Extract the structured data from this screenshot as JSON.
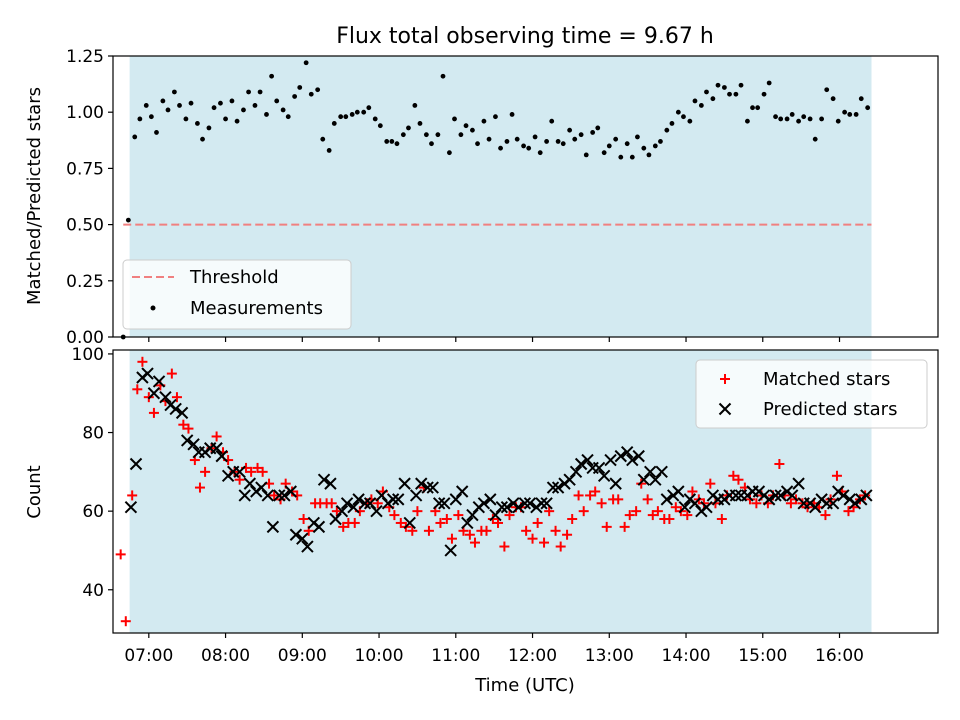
{
  "title": "Flux total observing time = 9.67 h",
  "colors": {
    "background": "#ffffff",
    "shade": "#d3eaf1",
    "threshold": "#f08080",
    "measurement": "#000000",
    "matched": "#ff0000",
    "predicted": "#000000"
  },
  "chart_data": [
    {
      "type": "scatter",
      "panel": "top",
      "xlabel": "",
      "ylabel": "Matched/Predicted stars",
      "xlim": [
        "06:32",
        "17:17"
      ],
      "ylim": [
        0.0,
        1.25
      ],
      "yticks": [
        0.0,
        0.25,
        0.5,
        0.75,
        1.0,
        1.25
      ],
      "ytick_labels": [
        "0.00",
        "0.25",
        "0.50",
        "0.75",
        "1.00",
        "1.25"
      ],
      "shaded_span": [
        "06:45",
        "16:25"
      ],
      "threshold": {
        "name": "Threshold",
        "y": 0.5,
        "x": [
          "06:40",
          "16:25"
        ]
      },
      "legend": {
        "position": "lower-left",
        "entries": [
          "Threshold",
          "Measurements"
        ]
      },
      "series": [
        {
          "name": "Measurements",
          "x": [
            "06:40",
            "06:44",
            "06:49",
            "06:53",
            "06:58",
            "07:02",
            "07:06",
            "07:11",
            "07:15",
            "07:20",
            "07:24",
            "07:29",
            "07:33",
            "07:38",
            "07:42",
            "07:47",
            "07:51",
            "07:56",
            "08:00",
            "08:05",
            "08:09",
            "08:14",
            "08:18",
            "08:23",
            "08:27",
            "08:32",
            "08:36",
            "08:40",
            "08:45",
            "08:49",
            "08:54",
            "08:58",
            "09:03",
            "09:07",
            "09:12",
            "09:16",
            "09:21",
            "09:25",
            "09:30",
            "09:34",
            "09:39",
            "09:43",
            "09:48",
            "09:52",
            "09:57",
            "10:01",
            "10:06",
            "10:10",
            "10:14",
            "10:19",
            "10:23",
            "10:28",
            "10:32",
            "10:37",
            "10:41",
            "10:46",
            "10:50",
            "10:55",
            "10:59",
            "11:04",
            "11:08",
            "11:13",
            "11:17",
            "11:22",
            "11:26",
            "11:31",
            "11:35",
            "11:40",
            "11:44",
            "11:48",
            "11:53",
            "11:57",
            "12:02",
            "12:06",
            "12:11",
            "12:15",
            "12:20",
            "12:24",
            "12:29",
            "12:33",
            "12:38",
            "12:42",
            "12:47",
            "12:51",
            "12:56",
            "13:00",
            "13:05",
            "13:09",
            "13:14",
            "13:18",
            "13:22",
            "13:27",
            "13:31",
            "13:36",
            "13:40",
            "13:45",
            "13:49",
            "13:54",
            "13:58",
            "14:03",
            "14:07",
            "14:12",
            "14:16",
            "14:21",
            "14:25",
            "14:30",
            "14:34",
            "14:39",
            "14:43",
            "14:48",
            "14:52",
            "14:56",
            "15:01",
            "15:05",
            "15:10",
            "15:14",
            "15:19",
            "15:23",
            "15:28",
            "15:32",
            "15:37",
            "15:41",
            "15:46",
            "15:50",
            "15:55",
            "15:59",
            "16:04",
            "16:08",
            "16:13",
            "16:17",
            "16:22"
          ],
          "y": [
            0.0,
            0.52,
            0.89,
            0.97,
            1.03,
            0.98,
            0.91,
            1.05,
            1.01,
            1.09,
            1.03,
            0.97,
            1.04,
            0.95,
            0.88,
            0.93,
            1.02,
            1.04,
            0.97,
            1.05,
            0.96,
            1.01,
            1.09,
            1.03,
            1.09,
            0.99,
            1.16,
            1.05,
            1.01,
            0.98,
            1.07,
            1.11,
            1.22,
            1.08,
            1.1,
            0.88,
            0.83,
            0.95,
            0.98,
            0.98,
            0.99,
            1.0,
            1.0,
            1.02,
            0.97,
            0.94,
            0.87,
            0.87,
            0.86,
            0.9,
            0.93,
            1.03,
            0.95,
            0.9,
            0.86,
            0.9,
            1.16,
            0.82,
            0.97,
            0.9,
            0.94,
            0.92,
            0.86,
            0.96,
            0.88,
            0.98,
            0.84,
            0.87,
            0.99,
            0.88,
            0.85,
            0.84,
            0.89,
            0.82,
            0.87,
            0.96,
            0.87,
            0.86,
            0.92,
            0.88,
            0.9,
            0.81,
            0.91,
            0.93,
            0.82,
            0.85,
            0.88,
            0.8,
            0.86,
            0.8,
            0.89,
            0.84,
            0.81,
            0.85,
            0.87,
            0.92,
            0.95,
            1.0,
            0.98,
            0.96,
            1.05,
            1.03,
            1.09,
            1.06,
            1.12,
            1.11,
            1.08,
            1.08,
            1.12,
            0.96,
            1.02,
            1.02,
            1.08,
            1.13,
            0.98,
            0.97,
            0.97,
            0.99,
            0.96,
            0.98,
            0.97,
            0.88,
            0.97,
            1.1,
            1.06,
            0.96,
            1.0,
            0.99,
            0.99,
            1.06,
            1.02
          ]
        }
      ]
    },
    {
      "type": "scatter",
      "panel": "bottom",
      "xlabel": "Time (UTC)",
      "ylabel": "Count",
      "xlim": [
        "06:32",
        "17:17"
      ],
      "ylim": [
        29,
        101
      ],
      "yticks": [
        40,
        60,
        80,
        100
      ],
      "ytick_labels": [
        "40",
        "60",
        "80",
        "100"
      ],
      "xticks": [
        "07:00",
        "08:00",
        "09:00",
        "10:00",
        "11:00",
        "12:00",
        "13:00",
        "14:00",
        "15:00",
        "16:00"
      ],
      "shaded_span": [
        "06:45",
        "16:25"
      ],
      "legend": {
        "position": "top-right",
        "entries": [
          "Matched stars",
          "Predicted stars"
        ]
      },
      "series": [
        {
          "name": "Matched stars",
          "marker": "plus",
          "x": [
            "06:38",
            "06:42",
            "06:47",
            "06:51",
            "06:55",
            "07:00",
            "07:04",
            "07:09",
            "07:13",
            "07:18",
            "07:22",
            "07:27",
            "07:31",
            "07:36",
            "07:40",
            "07:44",
            "07:49",
            "07:53",
            "07:58",
            "08:02",
            "08:07",
            "08:11",
            "08:16",
            "08:20",
            "08:25",
            "08:29",
            "08:34",
            "08:38",
            "08:43",
            "08:47",
            "08:52",
            "08:56",
            "09:01",
            "09:05",
            "09:10",
            "09:14",
            "09:19",
            "09:23",
            "09:27",
            "09:32",
            "09:36",
            "09:41",
            "09:45",
            "09:50",
            "09:54",
            "09:59",
            "10:03",
            "10:08",
            "10:12",
            "10:17",
            "10:21",
            "10:26",
            "10:30",
            "10:35",
            "10:39",
            "10:44",
            "10:48",
            "10:53",
            "10:57",
            "11:02",
            "11:06",
            "11:11",
            "11:15",
            "11:20",
            "11:24",
            "11:29",
            "11:33",
            "11:38",
            "11:42",
            "11:47",
            "11:51",
            "11:55",
            "12:00",
            "12:04",
            "12:09",
            "12:13",
            "12:18",
            "12:22",
            "12:27",
            "12:31",
            "12:36",
            "12:40",
            "12:45",
            "12:49",
            "12:54",
            "12:58",
            "13:03",
            "13:07",
            "13:12",
            "13:16",
            "13:21",
            "13:25",
            "13:30",
            "13:34",
            "13:38",
            "13:43",
            "13:47",
            "13:52",
            "13:56",
            "14:01",
            "14:05",
            "14:10",
            "14:14",
            "14:19",
            "14:23",
            "14:28",
            "14:32",
            "14:37",
            "14:41",
            "14:46",
            "14:50",
            "14:55",
            "14:59",
            "15:04",
            "15:08",
            "15:13",
            "15:17",
            "15:22",
            "15:26",
            "15:31",
            "15:35",
            "15:40",
            "15:44",
            "15:49",
            "15:53",
            "15:58",
            "16:02",
            "16:07",
            "16:11",
            "16:16",
            "16:20"
          ],
          "y": [
            49,
            32,
            64,
            91,
            98,
            89,
            85,
            92,
            88,
            95,
            89,
            82,
            81,
            73,
            66,
            70,
            76,
            79,
            75,
            73,
            70,
            68,
            71,
            70,
            71,
            70,
            67,
            64,
            63,
            67,
            65,
            64,
            58,
            55,
            62,
            62,
            62,
            62,
            60,
            56,
            57,
            57,
            60,
            62,
            63,
            62,
            65,
            61,
            59,
            57,
            56,
            55,
            60,
            66,
            55,
            60,
            57,
            58,
            53,
            59,
            55,
            54,
            52,
            55,
            55,
            58,
            57,
            51,
            59,
            61,
            61,
            55,
            53,
            57,
            52,
            60,
            55,
            51,
            54,
            58,
            64,
            60,
            64,
            65,
            62,
            56,
            63,
            63,
            56,
            59,
            60,
            67,
            63,
            59,
            60,
            58,
            58,
            61,
            60,
            59,
            65,
            63,
            62,
            67,
            62,
            58,
            64,
            69,
            68,
            66,
            63,
            62,
            64,
            62,
            64,
            72,
            64,
            62,
            63,
            62,
            61,
            62,
            61,
            59,
            63,
            69,
            65,
            60,
            61,
            63,
            64
          ]
        },
        {
          "name": "Predicted stars",
          "marker": "x",
          "x": [
            "06:46",
            "06:50",
            "06:55",
            "06:59",
            "07:04",
            "07:08",
            "07:13",
            "07:17",
            "07:21",
            "07:26",
            "07:30",
            "07:35",
            "07:39",
            "07:44",
            "07:48",
            "07:53",
            "07:57",
            "08:02",
            "08:06",
            "08:11",
            "08:15",
            "08:19",
            "08:24",
            "08:28",
            "08:33",
            "08:37",
            "08:42",
            "08:46",
            "08:51",
            "08:55",
            "09:00",
            "09:04",
            "09:09",
            "09:13",
            "09:17",
            "09:22",
            "09:26",
            "09:31",
            "09:35",
            "09:40",
            "09:44",
            "09:49",
            "09:53",
            "09:58",
            "10:02",
            "10:07",
            "10:11",
            "10:15",
            "10:20",
            "10:24",
            "10:29",
            "10:33",
            "10:38",
            "10:42",
            "10:47",
            "10:51",
            "10:56",
            "11:00",
            "11:05",
            "11:09",
            "11:13",
            "11:18",
            "11:22",
            "11:27",
            "11:31",
            "11:36",
            "11:40",
            "11:45",
            "11:49",
            "11:54",
            "11:58",
            "12:03",
            "12:07",
            "12:11",
            "12:16",
            "12:20",
            "12:25",
            "12:29",
            "12:34",
            "12:38",
            "12:43",
            "12:47",
            "12:52",
            "12:56",
            "13:01",
            "13:05",
            "13:09",
            "13:14",
            "13:18",
            "13:23",
            "13:27",
            "13:32",
            "13:36",
            "13:41",
            "13:45",
            "13:50",
            "13:54",
            "13:59",
            "14:03",
            "14:07",
            "14:12",
            "14:16",
            "14:21",
            "14:25",
            "14:30",
            "14:34",
            "14:39",
            "14:43",
            "14:48",
            "14:52",
            "14:57",
            "15:01",
            "15:05",
            "15:10",
            "15:14",
            "15:19",
            "15:23",
            "15:28",
            "15:32",
            "15:37",
            "15:41",
            "15:46",
            "15:50",
            "15:55",
            "15:59",
            "16:03",
            "16:08",
            "16:12",
            "16:17",
            "16:21"
          ],
          "y": [
            61,
            72,
            94,
            95,
            90,
            93,
            89,
            87,
            86,
            85,
            78,
            77,
            75,
            75,
            76,
            76,
            74,
            69,
            70,
            70,
            64,
            67,
            65,
            66,
            64,
            56,
            64,
            64,
            65,
            54,
            53,
            51,
            57,
            56,
            68,
            67,
            58,
            60,
            62,
            61,
            63,
            62,
            62,
            60,
            64,
            62,
            63,
            63,
            67,
            57,
            64,
            67,
            66,
            66,
            62,
            62,
            50,
            63,
            65,
            57,
            59,
            61,
            62,
            63,
            59,
            61,
            61,
            62,
            61,
            62,
            62,
            61,
            62,
            62,
            66,
            66,
            67,
            68,
            70,
            72,
            73,
            71,
            71,
            69,
            73,
            67,
            74,
            75,
            73,
            74,
            68,
            70,
            68,
            70,
            63,
            64,
            65,
            61,
            63,
            62,
            60,
            61,
            64,
            63,
            63,
            64,
            64,
            64,
            64,
            65,
            65,
            64,
            63,
            64,
            64,
            65,
            64,
            67,
            62,
            62,
            61,
            63,
            62,
            62,
            65,
            64,
            63,
            62,
            63,
            64
          ]
        }
      ]
    }
  ]
}
